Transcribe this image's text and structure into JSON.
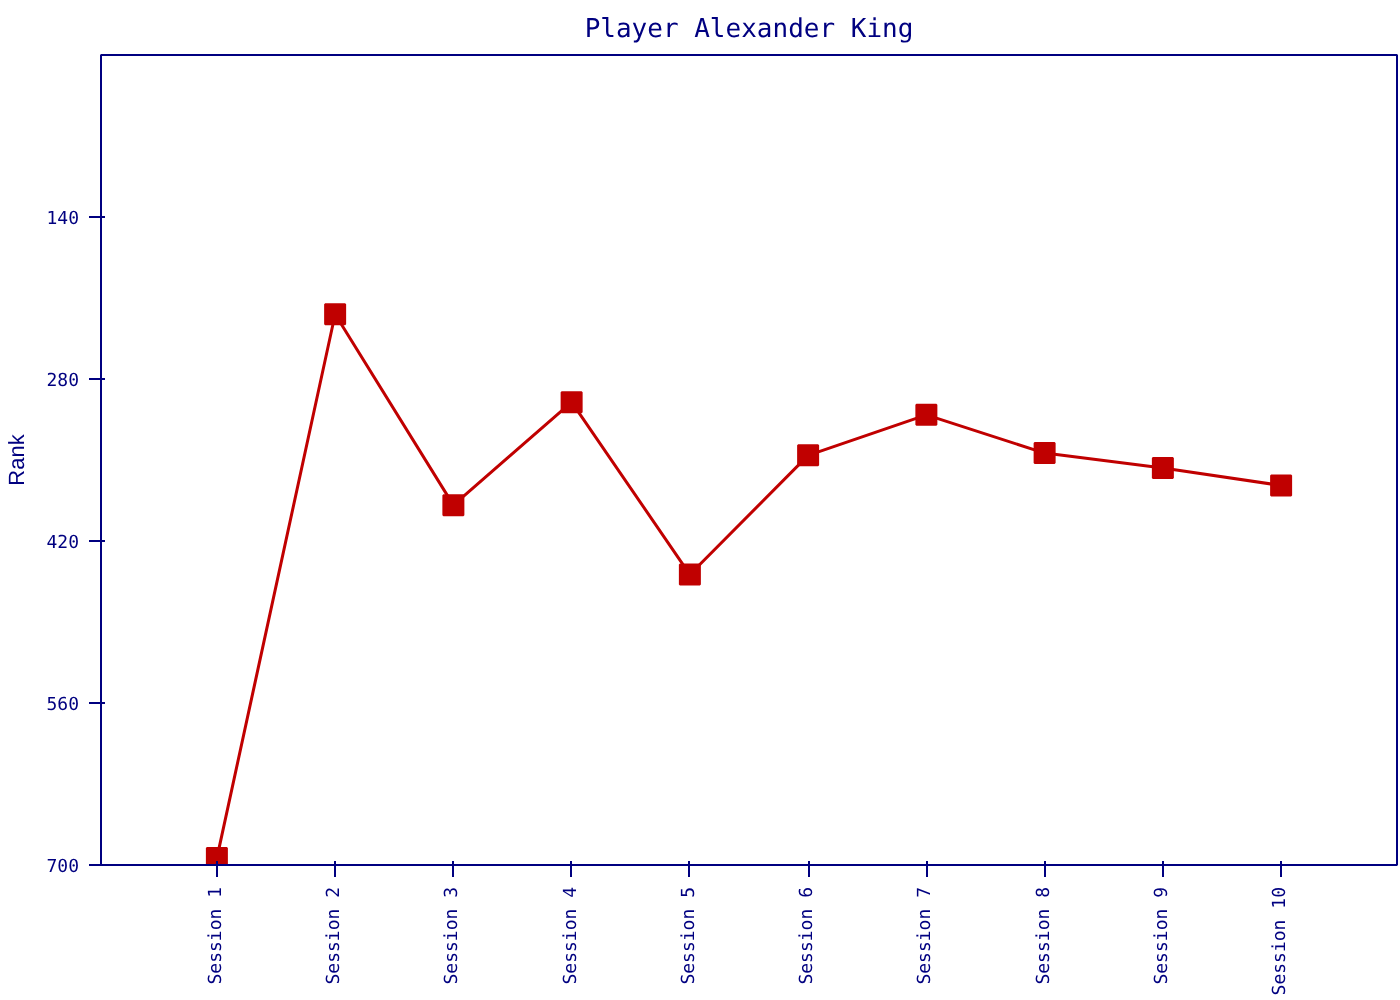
{
  "chart_data": {
    "type": "line",
    "title": "Player Alexander King",
    "ylabel": "Rank",
    "categories": [
      "Session 1",
      "Session 2",
      "Session 3",
      "Session 4",
      "Session 5",
      "Session 6",
      "Session 7",
      "Session 8",
      "Session 9",
      "Session 10"
    ],
    "series": [
      {
        "color": "#c00000",
        "values": [
          694,
          224,
          389,
          300,
          449,
          346,
          311,
          344,
          357,
          372
        ]
      }
    ],
    "ylim": [
      700,
      0
    ],
    "yticks": [
      700,
      560,
      420,
      280,
      140
    ],
    "grid": false,
    "marker": "square",
    "line_style": "solid"
  }
}
